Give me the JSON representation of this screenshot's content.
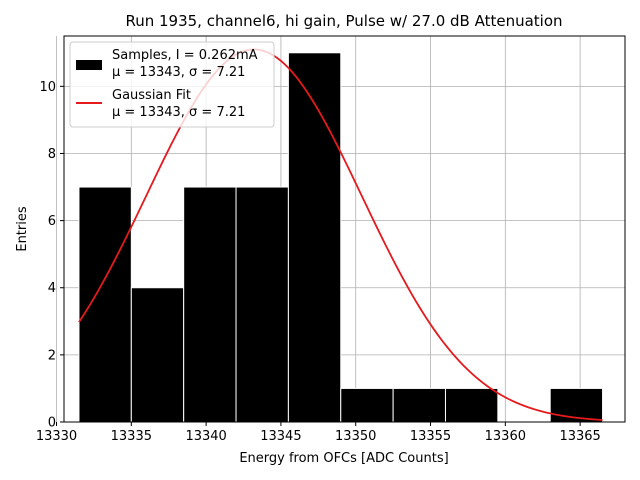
{
  "chart_data": {
    "type": "bar",
    "title": "Run 1935, channel6, hi gain, Pulse w/ 27.0 dB Attenuation",
    "xlabel": "Energy from OFCs [ADC Counts]",
    "ylabel": "Entries",
    "xlim": [
      13330.5,
      13368.0
    ],
    "ylim": [
      0,
      11.5
    ],
    "grid": true,
    "legend_position": "top-left",
    "x_ticks": [
      13330,
      13335,
      13340,
      13345,
      13350,
      13355,
      13360,
      13365
    ],
    "y_ticks": [
      0,
      2,
      4,
      6,
      8,
      10
    ],
    "bins": [
      {
        "x0": 13331.5,
        "x1": 13335.0,
        "count": 7
      },
      {
        "x0": 13335.0,
        "x1": 13338.5,
        "count": 4
      },
      {
        "x0": 13338.5,
        "x1": 13342.0,
        "count": 7
      },
      {
        "x0": 13342.0,
        "x1": 13345.5,
        "count": 7
      },
      {
        "x0": 13345.5,
        "x1": 13349.0,
        "count": 11
      },
      {
        "x0": 13349.0,
        "x1": 13352.5,
        "count": 1
      },
      {
        "x0": 13352.5,
        "x1": 13356.0,
        "count": 1
      },
      {
        "x0": 13356.0,
        "x1": 13359.5,
        "count": 1
      },
      {
        "x0": 13359.5,
        "x1": 13363.0,
        "count": 0
      },
      {
        "x0": 13363.0,
        "x1": 13366.5,
        "count": 1
      }
    ],
    "series": [
      {
        "name": "Samples, I = 0.262mA",
        "detail": "μ = 13343, σ = 7.21",
        "kind": "histogram",
        "color": "#000000"
      },
      {
        "name": "Gaussian Fit",
        "detail": "μ = 13343, σ = 7.21",
        "kind": "line",
        "color": "#e41a1c",
        "mu": 13343.2,
        "sigma": 7.21,
        "amplitude": 11.1,
        "x_range": [
          13331.5,
          13366.5
        ]
      }
    ]
  }
}
